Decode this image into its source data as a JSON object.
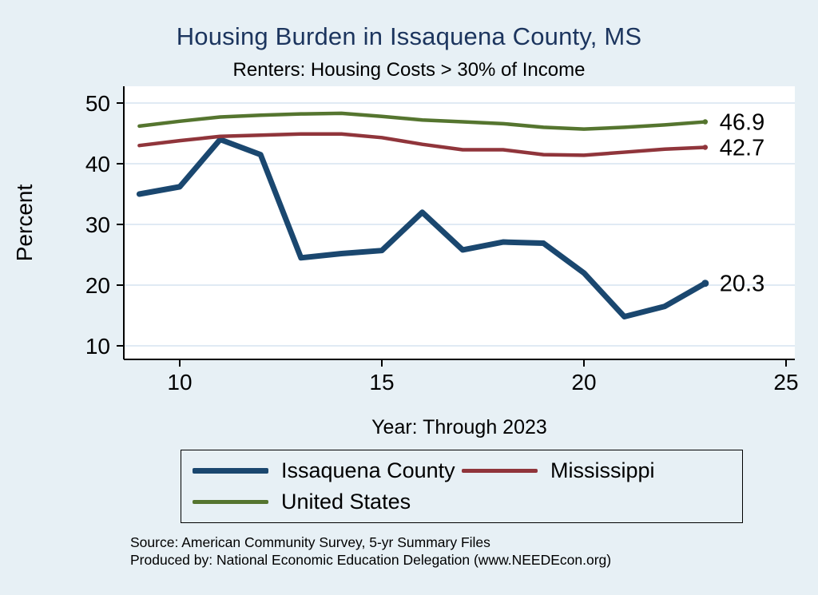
{
  "chart_data": {
    "type": "line",
    "title": "Housing Burden in Issaquena County, MS",
    "subtitle": "Renters: Housing Costs > 30% of Income",
    "xlabel": "Year: Through 2023",
    "ylabel": "Percent",
    "x_ticks": [
      10,
      15,
      20,
      25
    ],
    "y_ticks": [
      10,
      20,
      30,
      40,
      50
    ],
    "xlim": [
      8.6,
      25.2
    ],
    "ylim": [
      7.8,
      52.8
    ],
    "grid": "horizontal",
    "legend_position": "bottom",
    "x": [
      9,
      10,
      11,
      12,
      13,
      14,
      15,
      16,
      17,
      18,
      19,
      20,
      21,
      22,
      23
    ],
    "series": [
      {
        "name": "Issaquena County",
        "color": "#1a476f",
        "width": 7,
        "values": [
          35,
          36.2,
          44,
          41.5,
          24.5,
          25.2,
          25.7,
          32,
          25.8,
          27.1,
          26.9,
          22,
          14.8,
          16.5,
          20.3
        ],
        "end_label": "20.3"
      },
      {
        "name": "Mississippi",
        "color": "#90353b",
        "width": 4.5,
        "values": [
          43,
          43.8,
          44.5,
          44.7,
          44.9,
          44.9,
          44.3,
          43.2,
          42.3,
          42.3,
          41.5,
          41.4,
          41.9,
          42.4,
          42.7
        ],
        "end_label": "42.7"
      },
      {
        "name": "United States",
        "color": "#55752f",
        "width": 4.5,
        "values": [
          46.2,
          47,
          47.7,
          48,
          48.2,
          48.3,
          47.8,
          47.2,
          46.9,
          46.6,
          46,
          45.7,
          46,
          46.4,
          46.9
        ],
        "end_label": "46.9"
      }
    ],
    "source_line1": "Source: American Community Survey, 5-yr Summary Files",
    "source_line2": "Produced by: National Economic Education Delegation (www.NEEDEcon.org)"
  },
  "colors": {
    "background": "#e7f0f5",
    "plot_background": "#ffffff",
    "gridline": "#d6e4f0",
    "axis": "#000000",
    "title": "#1c355e"
  }
}
